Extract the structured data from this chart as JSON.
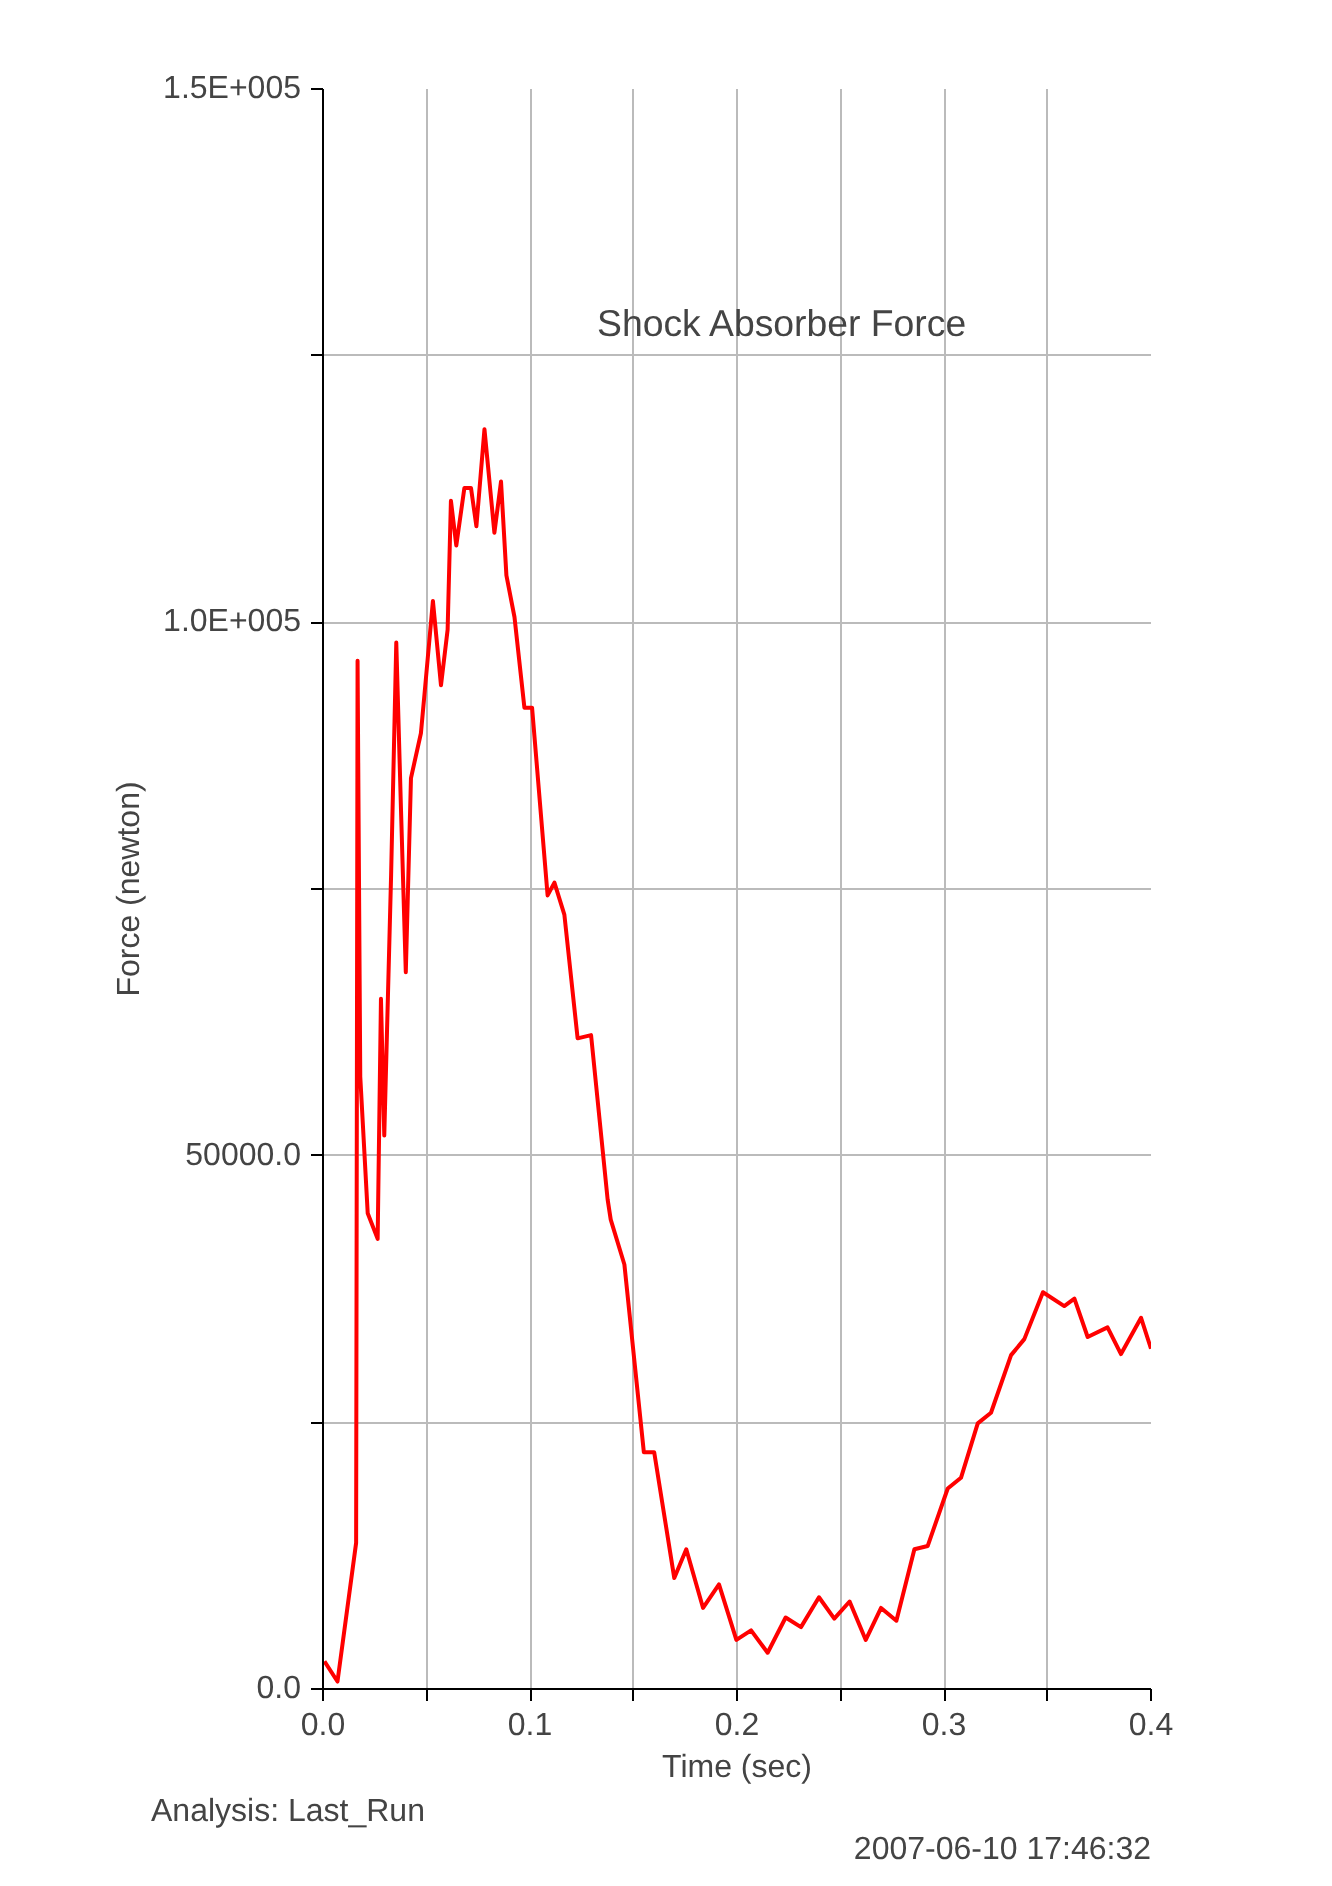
{
  "chart_data": {
    "type": "line",
    "xlabel": "Time (sec)",
    "ylabel": "Force (newton)",
    "annotations": [
      "Shock Absorber Force",
      "Analysis:  Last_Run",
      "2007-06-10 17:46:32"
    ],
    "xlim": [
      0,
      0.4
    ],
    "ylim": [
      0,
      150000
    ],
    "xticks": [
      {
        "value": 0,
        "label": "0.0"
      },
      {
        "value": 0.05,
        "label": null
      },
      0.1,
      {
        "value": 0.15,
        "label": null
      },
      0.2,
      {
        "value": 0.25,
        "label": null
      },
      0.3,
      {
        "value": 0.35,
        "label": null
      },
      0.4
    ],
    "yticks": [
      {
        "value": 0,
        "label": "0.0"
      },
      {
        "value": 25000,
        "label": null
      },
      {
        "value": 50000,
        "label": "50000.0"
      },
      {
        "value": 75000,
        "label": null
      },
      {
        "value": 100000,
        "label": "1.0E+005"
      },
      {
        "value": 125000,
        "label": null
      },
      {
        "value": 150000,
        "label": "1.5E+005"
      }
    ],
    "grid": true,
    "line_style": "solid",
    "series": [
      {
        "color": "#ff0000",
        "x": [
          0.0007,
          0.007,
          0.016,
          0.0167,
          0.018,
          0.0216,
          0.0264,
          0.028,
          0.0296,
          0.0329,
          0.0354,
          0.0377,
          0.04,
          0.0425,
          0.0473,
          0.049,
          0.0531,
          0.057,
          0.0602,
          0.0618,
          0.0644,
          0.0683,
          0.0715,
          0.0741,
          0.078,
          0.0828,
          0.086,
          0.0886,
          0.0925,
          0.0973,
          0.101,
          0.1085,
          0.1118,
          0.1166,
          0.123,
          0.1295,
          0.1375,
          0.139,
          0.1456,
          0.155,
          0.16,
          0.1697,
          0.1755,
          0.1836,
          0.1913,
          0.1997,
          0.2068,
          0.2148,
          0.2235,
          0.2309,
          0.2396,
          0.247,
          0.2544,
          0.2622,
          0.2696,
          0.277,
          0.2857,
          0.2921,
          0.3018,
          0.3082,
          0.3163,
          0.3227,
          0.3324,
          0.3388,
          0.3478,
          0.3581,
          0.363,
          0.3694,
          0.379,
          0.3855,
          0.3952,
          0.4
        ],
        "values": [
          2600,
          700,
          13700,
          96400,
          57400,
          44600,
          42200,
          64700,
          51900,
          76300,
          98100,
          82300,
          67200,
          85400,
          89600,
          93200,
          102000,
          94100,
          99300,
          111400,
          107200,
          112600,
          112600,
          109000,
          118100,
          108400,
          113200,
          104400,
          100500,
          92000,
          92000,
          74400,
          75600,
          72600,
          61000,
          61300,
          45900,
          44000,
          39800,
          22200,
          22200,
          10400,
          13100,
          7600,
          9800,
          4600,
          5500,
          3400,
          6700,
          5800,
          8600,
          6600,
          8200,
          4600,
          7600,
          6400,
          13100,
          13400,
          18800,
          19800,
          24900,
          25900,
          31300,
          32800,
          37200,
          35900,
          36600,
          33000,
          33900,
          31400,
          34800,
          31900
        ]
      }
    ]
  }
}
